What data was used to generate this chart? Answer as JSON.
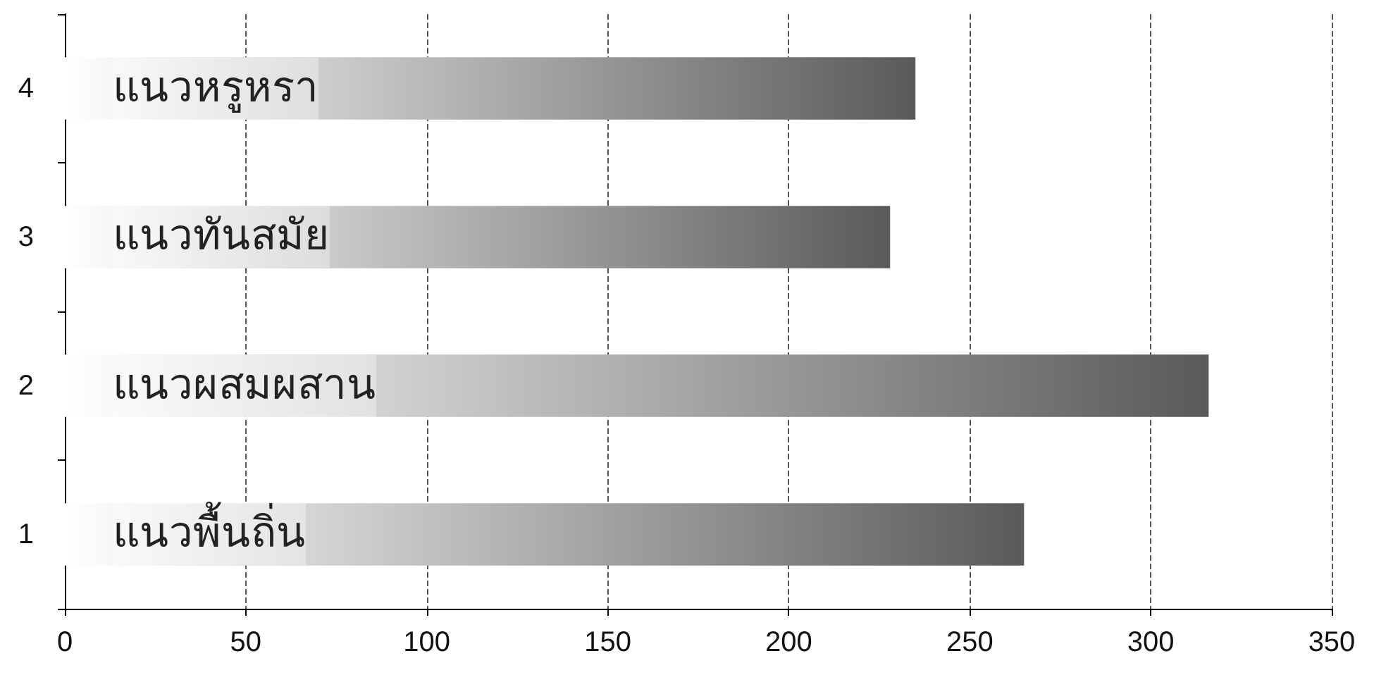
{
  "chart_data": {
    "type": "bar",
    "orientation": "horizontal",
    "categories": [
      "4",
      "3",
      "2",
      "1"
    ],
    "values": [
      235,
      228,
      316,
      265
    ],
    "color": "#5a5a5a",
    "xlim": [
      0,
      350
    ],
    "xticks": [
      0,
      50,
      100,
      150,
      200,
      250,
      300,
      350
    ],
    "grid": "x",
    "annotations": [
      "แนวหรูหรา",
      "แนวทันสมัย",
      "แนวผสมผสาน",
      "แนวพื้นถิ่น"
    ]
  }
}
